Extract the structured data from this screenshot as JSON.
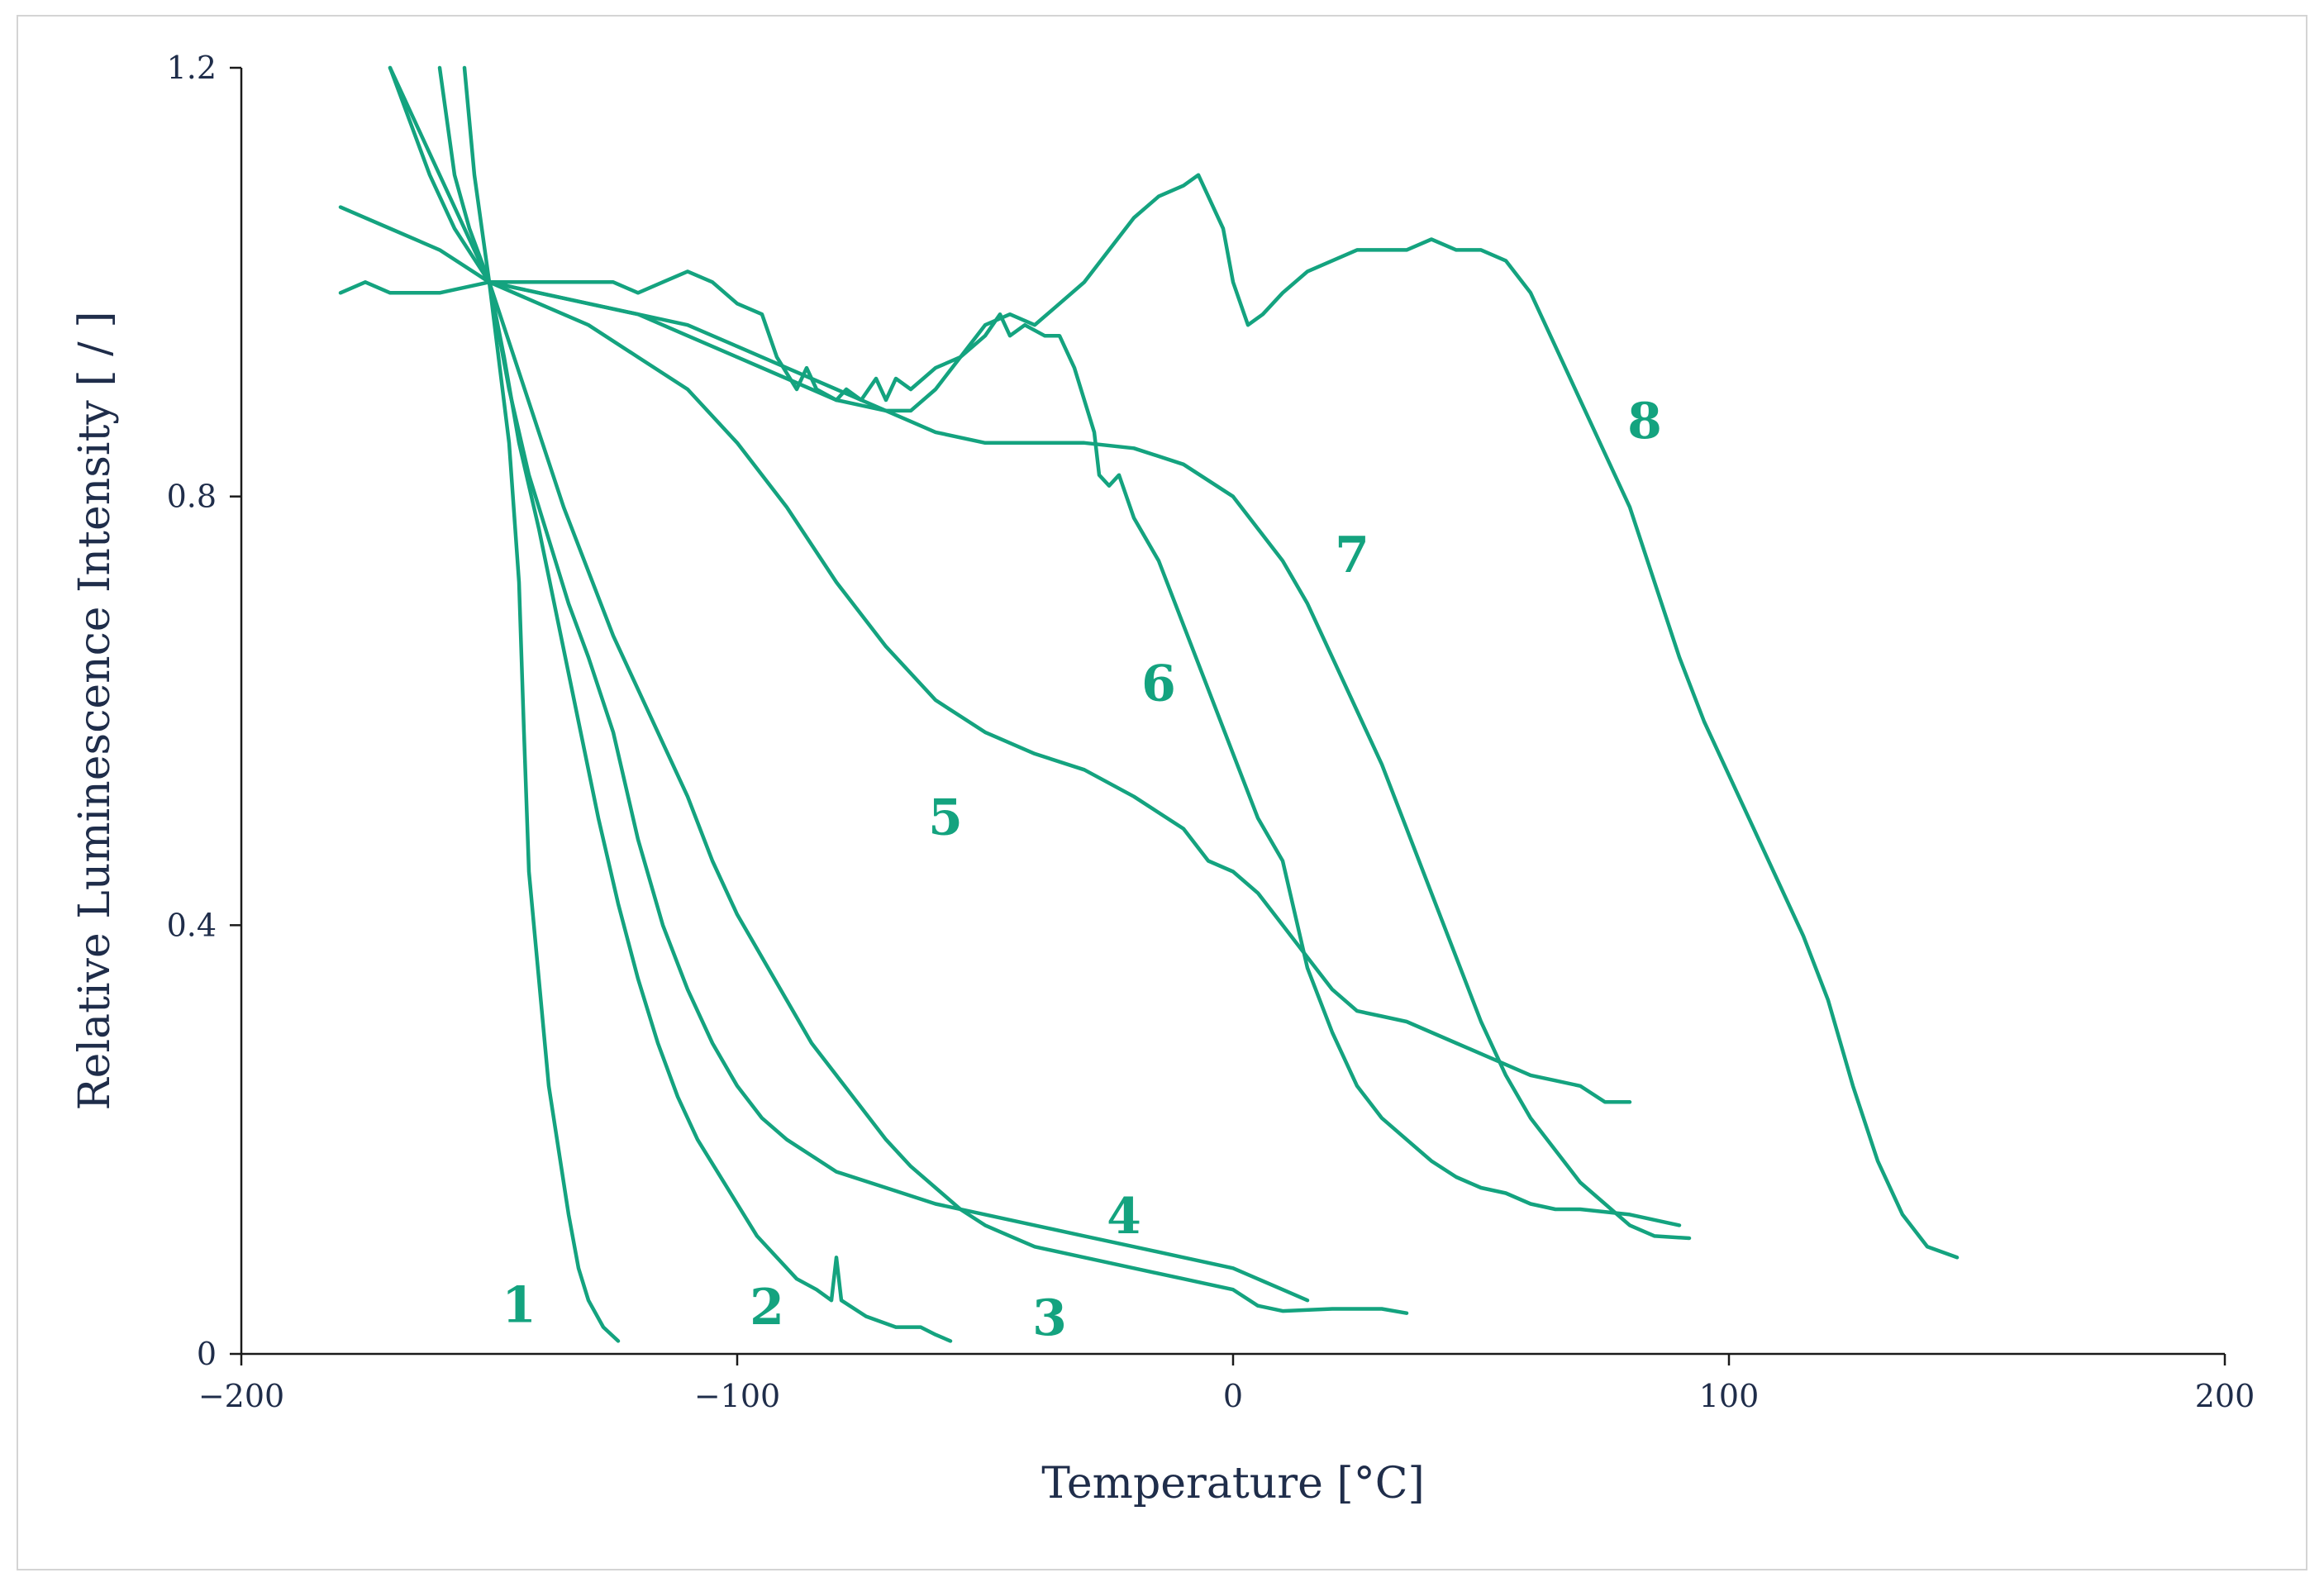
{
  "chart_data": {
    "type": "line",
    "title": "",
    "xlabel": "Temperature [°C]",
    "ylabel": "Relative Luminescence Intensity [ / ]",
    "xlim": [
      -200,
      200
    ],
    "ylim": [
      0,
      1.2
    ],
    "x_ticks": [
      "−200",
      "−100",
      "0",
      "100",
      "200"
    ],
    "x_tick_values": [
      -200,
      -100,
      0,
      100,
      200
    ],
    "y_ticks": [
      "0",
      "0.4",
      "0.8",
      "1.2"
    ],
    "y_tick_values": [
      0,
      0.4,
      0.8,
      1.2
    ],
    "grid": false,
    "line_color": "#14a37f",
    "series": [
      {
        "name": "1",
        "label_at": [
          -144,
          0.045
        ],
        "points": [
          [
            -155,
            1.2
          ],
          [
            -153,
            1.1
          ],
          [
            -150,
            1.0
          ],
          [
            -146,
            0.85
          ],
          [
            -144,
            0.72
          ],
          [
            -143,
            0.58
          ],
          [
            -142,
            0.45
          ],
          [
            -140,
            0.35
          ],
          [
            -138,
            0.25
          ],
          [
            -136,
            0.19
          ],
          [
            -134,
            0.13
          ],
          [
            -132,
            0.08
          ],
          [
            -130,
            0.05
          ],
          [
            -127,
            0.025
          ],
          [
            -124,
            0.012
          ]
        ]
      },
      {
        "name": "2",
        "label_at": [
          -94,
          0.043
        ],
        "points": [
          [
            -160,
            1.2
          ],
          [
            -157,
            1.1
          ],
          [
            -154,
            1.05
          ],
          [
            -150,
            1.0
          ],
          [
            -147,
            0.93
          ],
          [
            -144,
            0.85
          ],
          [
            -140,
            0.77
          ],
          [
            -136,
            0.68
          ],
          [
            -132,
            0.59
          ],
          [
            -128,
            0.5
          ],
          [
            -124,
            0.42
          ],
          [
            -120,
            0.35
          ],
          [
            -116,
            0.29
          ],
          [
            -112,
            0.24
          ],
          [
            -108,
            0.2
          ],
          [
            -104,
            0.17
          ],
          [
            -100,
            0.14
          ],
          [
            -96,
            0.11
          ],
          [
            -92,
            0.09
          ],
          [
            -88,
            0.07
          ],
          [
            -84,
            0.06
          ],
          [
            -81,
            0.05
          ],
          [
            -80,
            0.09
          ],
          [
            -79,
            0.05
          ],
          [
            -74,
            0.035
          ],
          [
            -68,
            0.025
          ],
          [
            -63,
            0.025
          ],
          [
            -60,
            0.018
          ],
          [
            -57,
            0.012
          ]
        ]
      },
      {
        "name": "3",
        "label_at": [
          -37,
          0.033
        ],
        "points": [
          [
            -170,
            1.2
          ],
          [
            -166,
            1.15
          ],
          [
            -162,
            1.1
          ],
          [
            -157,
            1.05
          ],
          [
            -150,
            1.0
          ],
          [
            -146,
            0.9
          ],
          [
            -142,
            0.82
          ],
          [
            -138,
            0.76
          ],
          [
            -134,
            0.7
          ],
          [
            -130,
            0.65
          ],
          [
            -125,
            0.58
          ],
          [
            -120,
            0.48
          ],
          [
            -115,
            0.4
          ],
          [
            -110,
            0.34
          ],
          [
            -105,
            0.29
          ],
          [
            -100,
            0.25
          ],
          [
            -95,
            0.22
          ],
          [
            -90,
            0.2
          ],
          [
            -85,
            0.185
          ],
          [
            -80,
            0.17
          ],
          [
            -70,
            0.155
          ],
          [
            -60,
            0.14
          ],
          [
            -50,
            0.13
          ],
          [
            -40,
            0.12
          ],
          [
            -30,
            0.11
          ],
          [
            -20,
            0.1
          ],
          [
            -10,
            0.09
          ],
          [
            0,
            0.08
          ],
          [
            10,
            0.06
          ],
          [
            15,
            0.05
          ]
        ]
      },
      {
        "name": "4",
        "label_at": [
          -22,
          0.128
        ],
        "points": [
          [
            -170,
            1.2
          ],
          [
            -165,
            1.15
          ],
          [
            -160,
            1.1
          ],
          [
            -155,
            1.05
          ],
          [
            -150,
            1.0
          ],
          [
            -145,
            0.93
          ],
          [
            -140,
            0.86
          ],
          [
            -135,
            0.79
          ],
          [
            -130,
            0.73
          ],
          [
            -125,
            0.67
          ],
          [
            -120,
            0.62
          ],
          [
            -115,
            0.57
          ],
          [
            -110,
            0.52
          ],
          [
            -105,
            0.46
          ],
          [
            -100,
            0.41
          ],
          [
            -95,
            0.37
          ],
          [
            -90,
            0.33
          ],
          [
            -85,
            0.29
          ],
          [
            -80,
            0.26
          ],
          [
            -75,
            0.23
          ],
          [
            -70,
            0.2
          ],
          [
            -65,
            0.175
          ],
          [
            -60,
            0.155
          ],
          [
            -55,
            0.135
          ],
          [
            -50,
            0.12
          ],
          [
            -45,
            0.11
          ],
          [
            -40,
            0.1
          ],
          [
            -30,
            0.09
          ],
          [
            -20,
            0.08
          ],
          [
            -10,
            0.07
          ],
          [
            0,
            0.06
          ],
          [
            5,
            0.045
          ],
          [
            10,
            0.04
          ],
          [
            20,
            0.042
          ],
          [
            30,
            0.042
          ],
          [
            35,
            0.038
          ]
        ]
      },
      {
        "name": "5",
        "label_at": [
          -58,
          0.5
        ],
        "points": [
          [
            -180,
            1.07
          ],
          [
            -170,
            1.05
          ],
          [
            -160,
            1.03
          ],
          [
            -150,
            1.0
          ],
          [
            -140,
            0.98
          ],
          [
            -130,
            0.96
          ],
          [
            -120,
            0.93
          ],
          [
            -110,
            0.9
          ],
          [
            -100,
            0.85
          ],
          [
            -90,
            0.79
          ],
          [
            -80,
            0.72
          ],
          [
            -70,
            0.66
          ],
          [
            -60,
            0.61
          ],
          [
            -50,
            0.58
          ],
          [
            -40,
            0.56
          ],
          [
            -30,
            0.545
          ],
          [
            -20,
            0.52
          ],
          [
            -10,
            0.49
          ],
          [
            -5,
            0.46
          ],
          [
            0,
            0.45
          ],
          [
            5,
            0.43
          ],
          [
            10,
            0.4
          ],
          [
            15,
            0.37
          ],
          [
            20,
            0.34
          ],
          [
            25,
            0.32
          ],
          [
            30,
            0.315
          ],
          [
            35,
            0.31
          ],
          [
            40,
            0.3
          ],
          [
            45,
            0.29
          ],
          [
            50,
            0.28
          ],
          [
            55,
            0.27
          ],
          [
            60,
            0.26
          ],
          [
            65,
            0.255
          ],
          [
            70,
            0.25
          ],
          [
            75,
            0.235
          ],
          [
            80,
            0.235
          ]
        ]
      },
      {
        "name": "6",
        "label_at": [
          -15,
          0.625
        ],
        "points": [
          [
            -150,
            1.0
          ],
          [
            -145,
            1.0
          ],
          [
            -140,
            1.0
          ],
          [
            -130,
            1.0
          ],
          [
            -125,
            1.0
          ],
          [
            -120,
            0.99
          ],
          [
            -115,
            1.0
          ],
          [
            -110,
            1.01
          ],
          [
            -105,
            1.0
          ],
          [
            -100,
            0.98
          ],
          [
            -95,
            0.97
          ],
          [
            -92,
            0.93
          ],
          [
            -88,
            0.9
          ],
          [
            -86,
            0.92
          ],
          [
            -84,
            0.9
          ],
          [
            -80,
            0.89
          ],
          [
            -78,
            0.9
          ],
          [
            -75,
            0.89
          ],
          [
            -72,
            0.91
          ],
          [
            -70,
            0.89
          ],
          [
            -68,
            0.91
          ],
          [
            -65,
            0.9
          ],
          [
            -60,
            0.92
          ],
          [
            -55,
            0.93
          ],
          [
            -50,
            0.95
          ],
          [
            -47,
            0.97
          ],
          [
            -45,
            0.95
          ],
          [
            -42,
            0.96
          ],
          [
            -38,
            0.95
          ],
          [
            -35,
            0.95
          ],
          [
            -32,
            0.92
          ],
          [
            -30,
            0.89
          ],
          [
            -28,
            0.86
          ],
          [
            -27,
            0.82
          ],
          [
            -25,
            0.81
          ],
          [
            -23,
            0.82
          ],
          [
            -20,
            0.78
          ],
          [
            -15,
            0.74
          ],
          [
            -10,
            0.68
          ],
          [
            -5,
            0.62
          ],
          [
            0,
            0.56
          ],
          [
            5,
            0.5
          ],
          [
            10,
            0.46
          ],
          [
            12,
            0.42
          ],
          [
            15,
            0.36
          ],
          [
            20,
            0.3
          ],
          [
            25,
            0.25
          ],
          [
            30,
            0.22
          ],
          [
            35,
            0.2
          ],
          [
            40,
            0.18
          ],
          [
            45,
            0.165
          ],
          [
            50,
            0.155
          ],
          [
            55,
            0.15
          ],
          [
            60,
            0.14
          ],
          [
            65,
            0.135
          ],
          [
            70,
            0.135
          ],
          [
            80,
            0.13
          ],
          [
            85,
            0.125
          ],
          [
            90,
            0.12
          ]
        ]
      },
      {
        "name": "7",
        "label_at": [
          24,
          0.745
        ],
        "points": [
          [
            -180,
            0.99
          ],
          [
            -175,
            1.0
          ],
          [
            -170,
            0.99
          ],
          [
            -160,
            0.99
          ],
          [
            -150,
            1.0
          ],
          [
            -140,
            0.99
          ],
          [
            -130,
            0.98
          ],
          [
            -120,
            0.97
          ],
          [
            -110,
            0.96
          ],
          [
            -100,
            0.94
          ],
          [
            -90,
            0.92
          ],
          [
            -80,
            0.9
          ],
          [
            -70,
            0.88
          ],
          [
            -60,
            0.86
          ],
          [
            -50,
            0.85
          ],
          [
            -40,
            0.85
          ],
          [
            -30,
            0.85
          ],
          [
            -20,
            0.845
          ],
          [
            -10,
            0.83
          ],
          [
            0,
            0.8
          ],
          [
            5,
            0.77
          ],
          [
            10,
            0.74
          ],
          [
            15,
            0.7
          ],
          [
            20,
            0.65
          ],
          [
            25,
            0.6
          ],
          [
            30,
            0.55
          ],
          [
            35,
            0.49
          ],
          [
            40,
            0.43
          ],
          [
            45,
            0.37
          ],
          [
            50,
            0.31
          ],
          [
            55,
            0.26
          ],
          [
            60,
            0.22
          ],
          [
            65,
            0.19
          ],
          [
            70,
            0.16
          ],
          [
            75,
            0.14
          ],
          [
            80,
            0.12
          ],
          [
            85,
            0.11
          ],
          [
            92,
            0.108
          ]
        ]
      },
      {
        "name": "8",
        "label_at": [
          83,
          0.87
        ],
        "points": [
          [
            -150,
            1.0
          ],
          [
            -140,
            0.99
          ],
          [
            -130,
            0.98
          ],
          [
            -120,
            0.97
          ],
          [
            -110,
            0.95
          ],
          [
            -100,
            0.93
          ],
          [
            -90,
            0.91
          ],
          [
            -80,
            0.89
          ],
          [
            -70,
            0.88
          ],
          [
            -65,
            0.88
          ],
          [
            -60,
            0.9
          ],
          [
            -55,
            0.93
          ],
          [
            -50,
            0.96
          ],
          [
            -45,
            0.97
          ],
          [
            -40,
            0.96
          ],
          [
            -35,
            0.98
          ],
          [
            -30,
            1.0
          ],
          [
            -25,
            1.03
          ],
          [
            -20,
            1.06
          ],
          [
            -15,
            1.08
          ],
          [
            -10,
            1.09
          ],
          [
            -7,
            1.1
          ],
          [
            -5,
            1.08
          ],
          [
            -2,
            1.05
          ],
          [
            0,
            1.0
          ],
          [
            3,
            0.96
          ],
          [
            6,
            0.97
          ],
          [
            10,
            0.99
          ],
          [
            15,
            1.01
          ],
          [
            20,
            1.02
          ],
          [
            25,
            1.03
          ],
          [
            30,
            1.03
          ],
          [
            35,
            1.03
          ],
          [
            40,
            1.04
          ],
          [
            45,
            1.03
          ],
          [
            50,
            1.03
          ],
          [
            55,
            1.02
          ],
          [
            60,
            0.99
          ],
          [
            65,
            0.94
          ],
          [
            70,
            0.89
          ],
          [
            75,
            0.84
          ],
          [
            80,
            0.79
          ],
          [
            85,
            0.72
          ],
          [
            90,
            0.65
          ],
          [
            95,
            0.59
          ],
          [
            100,
            0.54
          ],
          [
            105,
            0.49
          ],
          [
            110,
            0.44
          ],
          [
            115,
            0.39
          ],
          [
            120,
            0.33
          ],
          [
            125,
            0.25
          ],
          [
            130,
            0.18
          ],
          [
            135,
            0.13
          ],
          [
            140,
            0.1
          ],
          [
            146,
            0.09
          ]
        ]
      }
    ]
  }
}
